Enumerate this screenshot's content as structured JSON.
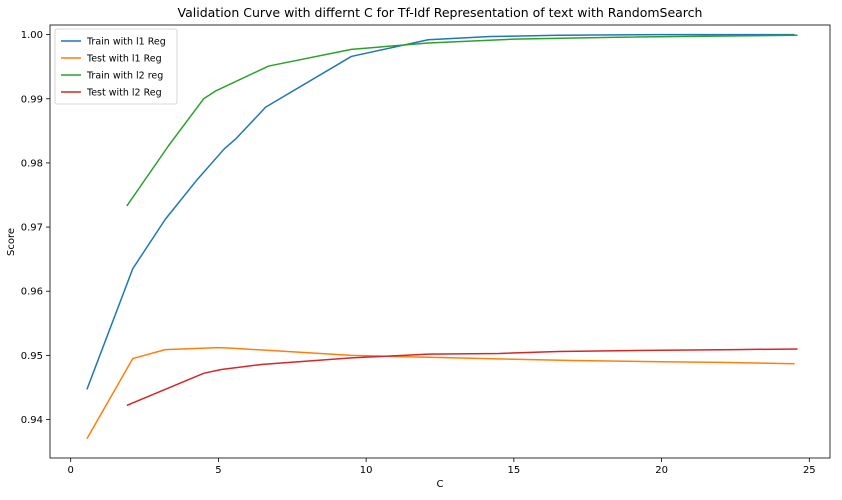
{
  "chart_data": {
    "type": "line",
    "title": "Validation Curve with differnt C for Tf-Idf Representation of text with RandomSearch",
    "xlabel": "C",
    "ylabel": "Score",
    "xlim": [
      -0.7,
      25.7
    ],
    "ylim": [
      0.934,
      1.0015
    ],
    "xticks": [
      0,
      5,
      10,
      15,
      20,
      25
    ],
    "yticks": [
      0.94,
      0.95,
      0.96,
      0.97,
      0.98,
      0.99,
      1.0
    ],
    "ytick_labels": [
      "0.94",
      "0.95",
      "0.96",
      "0.97",
      "0.98",
      "0.99",
      "1.00"
    ],
    "grid": false,
    "legend_position": "top-left",
    "series": [
      {
        "name": "Train with l1 Reg",
        "color": "#1f77b4",
        "points": [
          [
            0.55,
            0.9447
          ],
          [
            2.1,
            0.9635
          ],
          [
            3.2,
            0.9712
          ],
          [
            4.3,
            0.9775
          ],
          [
            5.2,
            0.9822
          ],
          [
            5.6,
            0.9838
          ],
          [
            6.6,
            0.9887
          ],
          [
            9.5,
            0.9966
          ],
          [
            12.1,
            0.9992
          ],
          [
            14.2,
            0.9997
          ],
          [
            16.5,
            0.9999
          ],
          [
            20.0,
            1.0
          ],
          [
            24.5,
            1.0
          ]
        ]
      },
      {
        "name": "Test with l1 Reg",
        "color": "#ff7f0e",
        "points": [
          [
            0.55,
            0.937
          ],
          [
            2.1,
            0.9495
          ],
          [
            3.2,
            0.9509
          ],
          [
            5.0,
            0.9512
          ],
          [
            5.5,
            0.9511
          ],
          [
            7.0,
            0.9507
          ],
          [
            9.5,
            0.95
          ],
          [
            12.1,
            0.9497
          ],
          [
            15.0,
            0.9494
          ],
          [
            17.0,
            0.9492
          ],
          [
            20.0,
            0.949
          ],
          [
            22.0,
            0.9489
          ],
          [
            24.5,
            0.9487
          ]
        ]
      },
      {
        "name": "Train with l2 reg",
        "color": "#2ca02c",
        "points": [
          [
            1.9,
            0.9733
          ],
          [
            3.3,
            0.9826
          ],
          [
            4.5,
            0.99
          ],
          [
            4.9,
            0.9912
          ],
          [
            6.7,
            0.9951
          ],
          [
            9.5,
            0.9977
          ],
          [
            12.1,
            0.9987
          ],
          [
            15.0,
            0.9993
          ],
          [
            18.5,
            0.9996
          ],
          [
            24.6,
            0.9999
          ]
        ]
      },
      {
        "name": "Test with l2 Reg",
        "color": "#d62728",
        "points": [
          [
            1.9,
            0.9422
          ],
          [
            4.5,
            0.9472
          ],
          [
            5.1,
            0.9478
          ],
          [
            6.5,
            0.9486
          ],
          [
            9.5,
            0.9496
          ],
          [
            12.1,
            0.9502
          ],
          [
            14.5,
            0.9503
          ],
          [
            16.5,
            0.9506
          ],
          [
            20.0,
            0.9508
          ],
          [
            22.5,
            0.9509
          ],
          [
            24.6,
            0.951
          ]
        ]
      }
    ]
  }
}
